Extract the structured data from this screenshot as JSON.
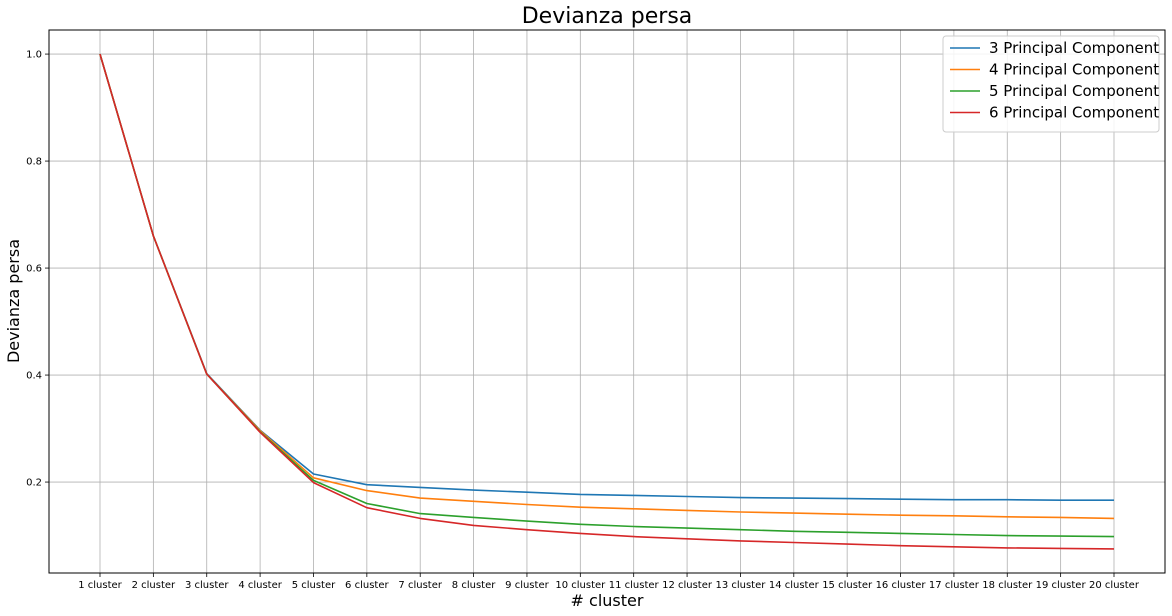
{
  "chart_data": {
    "type": "line",
    "title": "Devianza persa",
    "xlabel": "# cluster",
    "ylabel": "Devianza persa",
    "categories": [
      "1 cluster",
      "2 cluster",
      "3 cluster",
      "4 cluster",
      "5 cluster",
      "6 cluster",
      "7 cluster",
      "8 cluster",
      "9 cluster",
      "10 cluster",
      "11 cluster",
      "12 cluster",
      "13 cluster",
      "14 cluster",
      "15 cluster",
      "16 cluster",
      "17 cluster",
      "18 cluster",
      "19 cluster",
      "20 cluster"
    ],
    "yticks": [
      "0.2",
      "0.4",
      "0.6",
      "0.8",
      "1.0"
    ],
    "ylim": [
      0.03,
      1.045
    ],
    "grid": true,
    "legend_position": "top-right",
    "series": [
      {
        "name": "3 Principal Component",
        "color": "#1f77b4",
        "values": [
          1.0,
          0.66,
          0.403,
          0.297,
          0.215,
          0.195,
          0.19,
          0.185,
          0.181,
          0.177,
          0.175,
          0.173,
          0.171,
          0.17,
          0.169,
          0.168,
          0.167,
          0.167,
          0.166,
          0.166
        ]
      },
      {
        "name": "4 Principal Component",
        "color": "#ff7f0e",
        "values": [
          1.0,
          0.66,
          0.402,
          0.296,
          0.208,
          0.184,
          0.17,
          0.164,
          0.158,
          0.153,
          0.15,
          0.147,
          0.144,
          0.142,
          0.14,
          0.138,
          0.137,
          0.135,
          0.134,
          0.132
        ]
      },
      {
        "name": "5 Principal Component",
        "color": "#2ca02c",
        "values": [
          1.0,
          0.66,
          0.402,
          0.294,
          0.203,
          0.16,
          0.141,
          0.134,
          0.127,
          0.121,
          0.117,
          0.114,
          0.111,
          0.108,
          0.106,
          0.104,
          0.102,
          0.1,
          0.099,
          0.098
        ]
      },
      {
        "name": "6 Principal Component",
        "color": "#d62728",
        "values": [
          1.0,
          0.66,
          0.402,
          0.293,
          0.199,
          0.152,
          0.132,
          0.119,
          0.111,
          0.104,
          0.098,
          0.094,
          0.09,
          0.087,
          0.084,
          0.081,
          0.079,
          0.077,
          0.076,
          0.075
        ]
      }
    ]
  }
}
